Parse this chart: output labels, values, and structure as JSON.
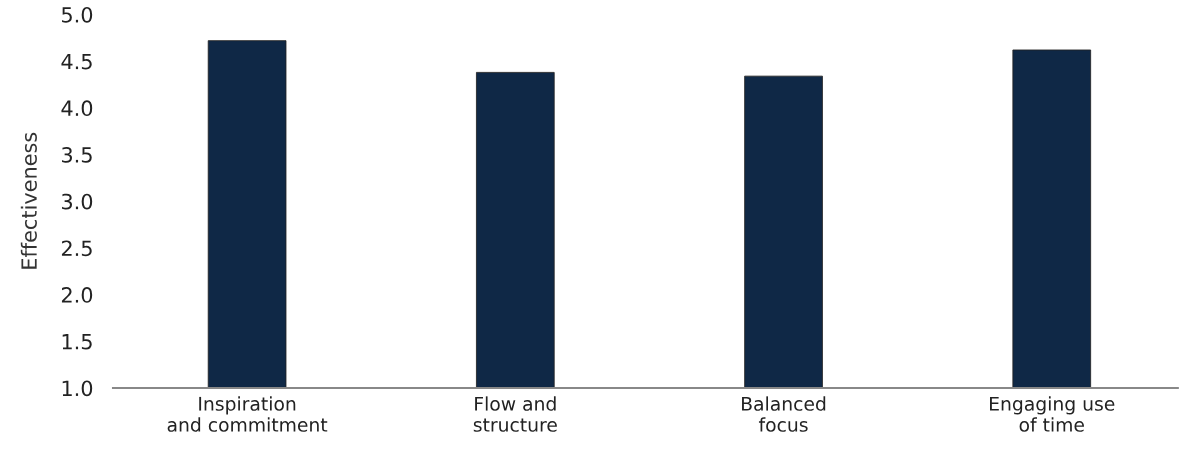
{
  "chart_data": {
    "type": "bar",
    "ylabel": "Effectiveness",
    "categories": [
      "Inspiration\nand commitment",
      "Flow and\nstructure",
      "Balanced\nfocus",
      "Engaging use\nof time"
    ],
    "values": [
      4.72,
      4.38,
      4.34,
      4.62
    ],
    "color": "#0f2846",
    "ylim": [
      1.0,
      5.0
    ],
    "yticks": [
      {
        "value": 1.0,
        "label": "1.0"
      },
      {
        "value": 1.5,
        "label": "1.5"
      },
      {
        "value": 2.0,
        "label": "2.0"
      },
      {
        "value": 2.5,
        "label": "2.5"
      },
      {
        "value": 3.0,
        "label": "3.0"
      },
      {
        "value": 3.5,
        "label": "3.5"
      },
      {
        "value": 4.0,
        "label": "4.0"
      },
      {
        "value": 4.5,
        "label": "4.5"
      },
      {
        "value": 5.0,
        "label": "5.0"
      }
    ],
    "grid": false,
    "legend": false
  }
}
